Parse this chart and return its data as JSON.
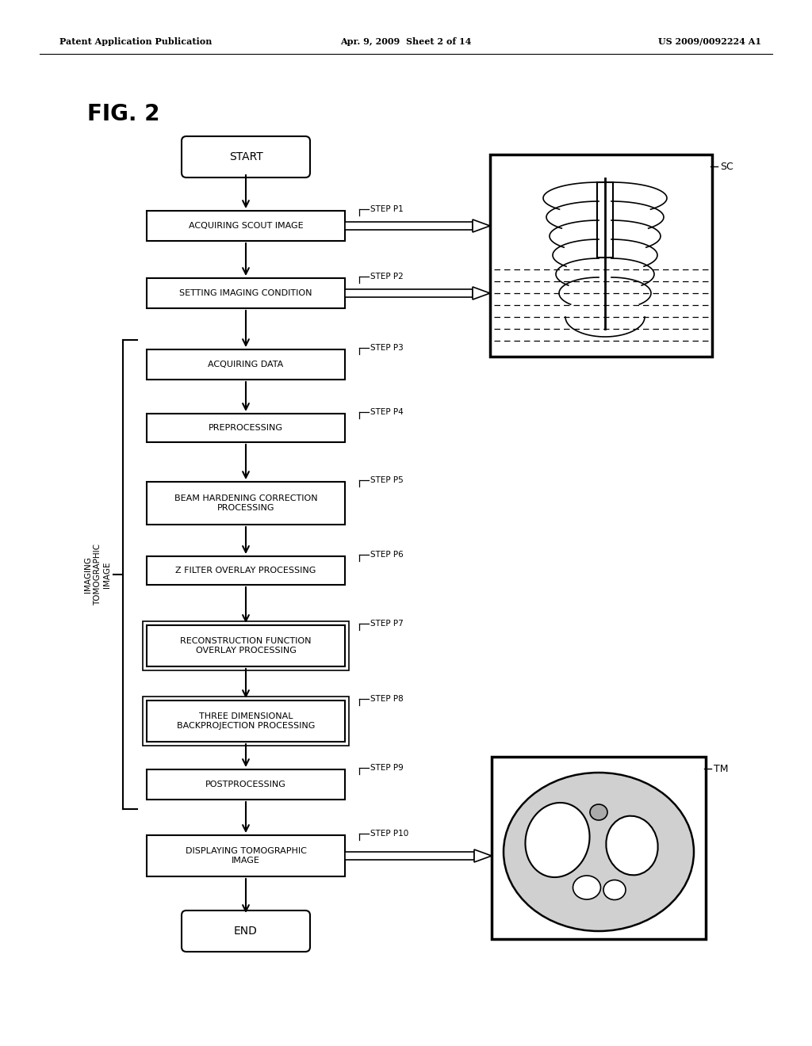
{
  "title": "FIG. 2",
  "header_left": "Patent Application Publication",
  "header_mid": "Apr. 9, 2009  Sheet 2 of 14",
  "header_right": "US 2009/0092224 A1",
  "bg_color": "#ffffff",
  "steps": [
    {
      "label": "START",
      "shape": "rounded",
      "step_label": ""
    },
    {
      "label": "ACQUIRING SCOUT IMAGE",
      "shape": "rect",
      "step_label": "STEP P1"
    },
    {
      "label": "SETTING IMAGING CONDITION",
      "shape": "rect",
      "step_label": "STEP P2"
    },
    {
      "label": "ACQUIRING DATA",
      "shape": "rect",
      "step_label": "STEP P3"
    },
    {
      "label": "PREPROCESSING",
      "shape": "rect",
      "step_label": "STEP P4"
    },
    {
      "label": "BEAM HARDENING CORRECTION\nPROCESSING",
      "shape": "rect",
      "step_label": "STEP P5"
    },
    {
      "label": "Z FILTER OVERLAY PROCESSING",
      "shape": "rect",
      "step_label": "STEP P6"
    },
    {
      "label": "RECONSTRUCTION FUNCTION\nOVERLAY PROCESSING",
      "shape": "rect",
      "step_label": "STEP P7"
    },
    {
      "label": "THREE DIMENSIONAL\nBACKPROJECTION PROCESSING",
      "shape": "rect",
      "step_label": "STEP P8"
    },
    {
      "label": "POSTPROCESSING",
      "shape": "rect",
      "step_label": "STEP P9"
    },
    {
      "label": "DISPLAYING TOMOGRAPHIC\nIMAGE",
      "shape": "rect",
      "step_label": "STEP P10"
    },
    {
      "label": "END",
      "shape": "rounded",
      "step_label": ""
    }
  ],
  "brace_label": "IMAGING\nTOMOGRAPHIC\nIMAGE",
  "sc_label": "SC",
  "tm_label": "TM"
}
